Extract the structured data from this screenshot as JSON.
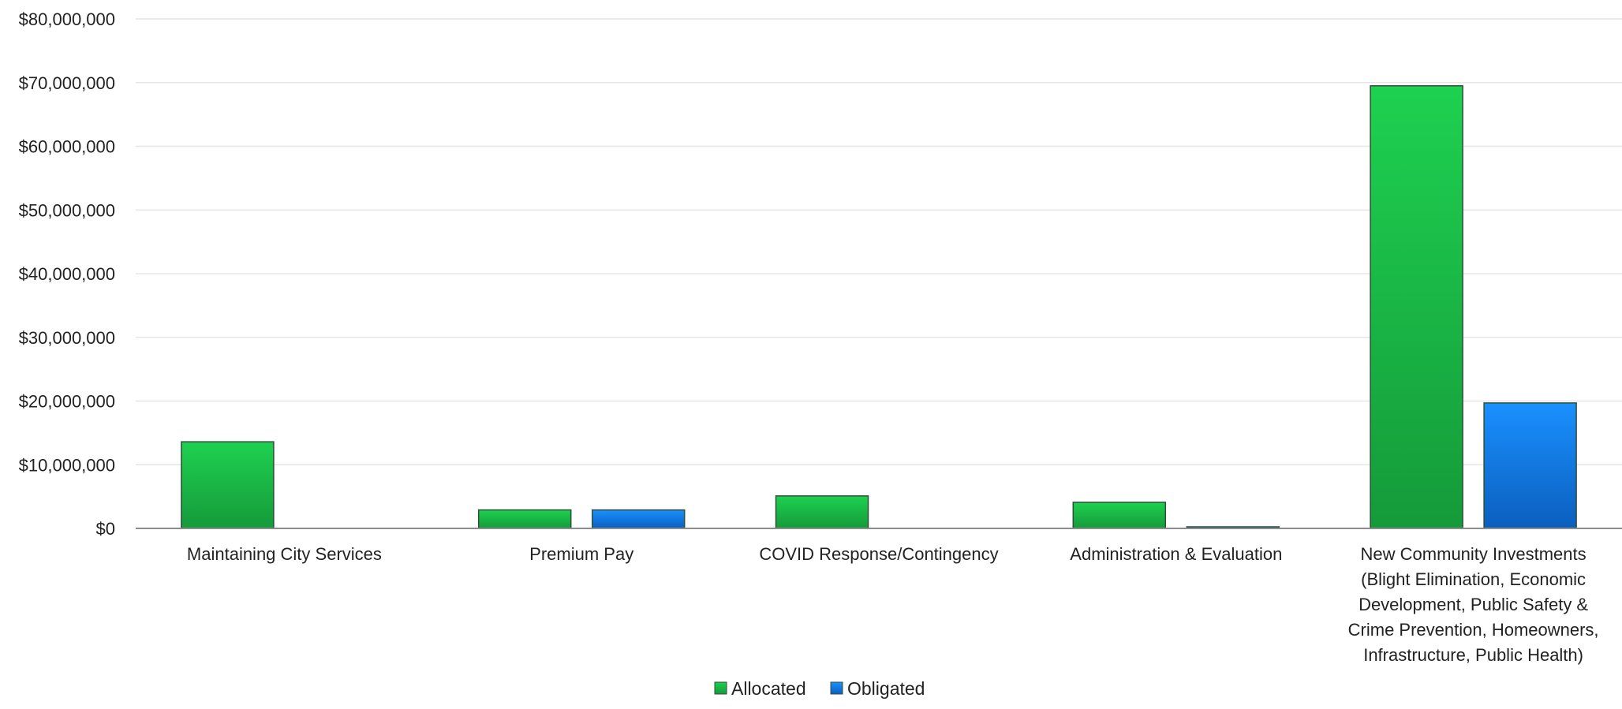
{
  "chart_data": {
    "type": "bar",
    "categories": [
      [
        "Maintaining City Services"
      ],
      [
        "Premium Pay"
      ],
      [
        "COVID Response/Contingency"
      ],
      [
        "Administration & Evaluation"
      ],
      [
        "New Community Investments",
        "(Blight Elimination, Economic",
        "Development, Public Safety &",
        "Crime Prevention, Homeowners,",
        "Infrastructure, Public Health)"
      ]
    ],
    "series": [
      {
        "name": "Allocated",
        "values": [
          13600000,
          2900000,
          5100000,
          4100000,
          69500000
        ],
        "color_top": "#1ED150",
        "color_bottom": "#159A3A"
      },
      {
        "name": "Obligated",
        "values": [
          0,
          2900000,
          0,
          250000,
          19700000
        ],
        "color_top": "#1A90FF",
        "color_bottom": "#0B5FBE"
      }
    ],
    "ylim": [
      0,
      80000000
    ],
    "yticks": [
      "$0",
      "$10,000,000",
      "$20,000,000",
      "$30,000,000",
      "$40,000,000",
      "$50,000,000",
      "$60,000,000",
      "$70,000,000",
      "$80,000,000"
    ],
    "ytick_values": [
      0,
      10000000,
      20000000,
      30000000,
      40000000,
      50000000,
      60000000,
      70000000,
      80000000
    ],
    "grid": true,
    "legend_position": "bottom"
  }
}
